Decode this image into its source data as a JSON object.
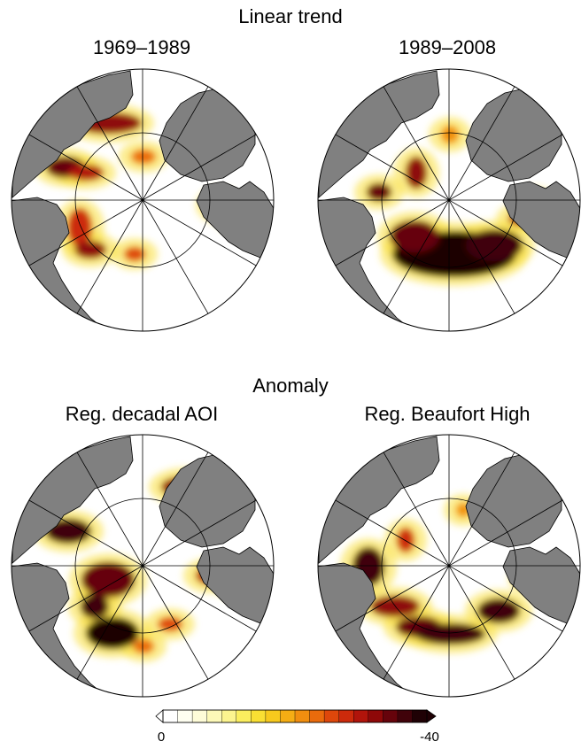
{
  "headings": {
    "linear_trend": "Linear trend",
    "anomaly": "Anomaly"
  },
  "panels": [
    {
      "title": "1969–1989"
    },
    {
      "title": "1989–2008"
    },
    {
      "title": "Reg. decadal AOI"
    },
    {
      "title": "Reg. Beaufort High"
    }
  ],
  "colorbar": {
    "min_label": "0",
    "max_label": "-40",
    "colors": [
      "#ffffff",
      "#fefef0",
      "#fefcd8",
      "#fdf9b8",
      "#fcf48f",
      "#fbee5e",
      "#f9df33",
      "#f7c91d",
      "#f5ad14",
      "#f18e0f",
      "#ea6b0c",
      "#de470b",
      "#cc2a0b",
      "#b1140b",
      "#8e0808",
      "#66030b",
      "#40020a",
      "#1f0105"
    ]
  },
  "colors": {
    "land": "#808080",
    "ocean_no_change": "#ffffff",
    "grid": "#000000"
  }
}
